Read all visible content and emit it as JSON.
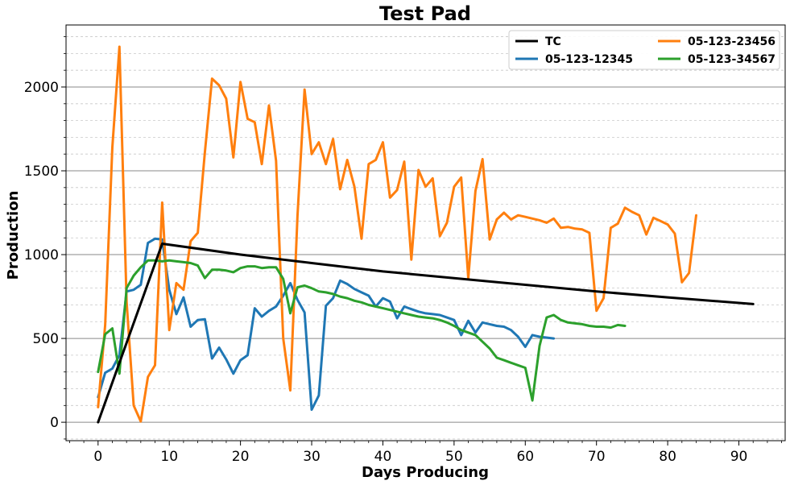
{
  "chart_data": {
    "type": "line",
    "title": "Test Pad",
    "xlabel": "Days Producing",
    "ylabel": "Production",
    "xlim": [
      -4.5,
      96.5
    ],
    "ylim": [
      -110,
      2370
    ],
    "x_ticks": [
      0,
      10,
      20,
      30,
      40,
      50,
      60,
      70,
      80,
      90
    ],
    "x_tick_labels": [
      "0",
      "10",
      "20",
      "30",
      "40",
      "50",
      "60",
      "70",
      "80",
      "90"
    ],
    "y_ticks": [
      0,
      500,
      1000,
      1500,
      2000
    ],
    "y_tick_labels": [
      "0",
      "500",
      "1000",
      "1500",
      "2000"
    ],
    "y_minor_step": 100,
    "grid": true,
    "legend_position": "top-right",
    "legend_columns": 2,
    "series": [
      {
        "name": "TC",
        "color": "#000000",
        "points": [
          [
            0,
            0
          ],
          [
            9,
            1065
          ],
          [
            20,
            1000
          ],
          [
            30,
            950
          ],
          [
            40,
            900
          ],
          [
            50,
            860
          ],
          [
            60,
            820
          ],
          [
            70,
            780
          ],
          [
            80,
            745
          ],
          [
            92,
            705
          ]
        ]
      },
      {
        "name": "05-123-12345",
        "color": "#1f77b4",
        "points": [
          [
            0,
            150
          ],
          [
            1,
            295
          ],
          [
            2,
            320
          ],
          [
            3,
            400
          ],
          [
            4,
            780
          ],
          [
            5,
            790
          ],
          [
            6,
            820
          ],
          [
            7,
            1070
          ],
          [
            8,
            1095
          ],
          [
            9,
            1090
          ],
          [
            10,
            790
          ],
          [
            11,
            645
          ],
          [
            12,
            745
          ],
          [
            13,
            570
          ],
          [
            14,
            610
          ],
          [
            15,
            615
          ],
          [
            16,
            380
          ],
          [
            17,
            445
          ],
          [
            18,
            375
          ],
          [
            19,
            290
          ],
          [
            20,
            370
          ],
          [
            21,
            400
          ],
          [
            22,
            680
          ],
          [
            23,
            630
          ],
          [
            24,
            665
          ],
          [
            25,
            690
          ],
          [
            26,
            755
          ],
          [
            27,
            830
          ],
          [
            28,
            730
          ],
          [
            29,
            655
          ],
          [
            30,
            75
          ],
          [
            31,
            160
          ],
          [
            32,
            695
          ],
          [
            33,
            740
          ],
          [
            34,
            845
          ],
          [
            35,
            825
          ],
          [
            36,
            795
          ],
          [
            37,
            775
          ],
          [
            38,
            755
          ],
          [
            39,
            690
          ],
          [
            40,
            740
          ],
          [
            41,
            720
          ],
          [
            42,
            620
          ],
          [
            43,
            690
          ],
          [
            44,
            675
          ],
          [
            45,
            660
          ],
          [
            46,
            650
          ],
          [
            47,
            645
          ],
          [
            48,
            640
          ],
          [
            49,
            625
          ],
          [
            50,
            610
          ],
          [
            51,
            520
          ],
          [
            52,
            605
          ],
          [
            53,
            535
          ],
          [
            54,
            595
          ],
          [
            55,
            585
          ],
          [
            56,
            575
          ],
          [
            57,
            570
          ],
          [
            58,
            550
          ],
          [
            59,
            510
          ],
          [
            60,
            450
          ],
          [
            61,
            520
          ],
          [
            62,
            510
          ],
          [
            64,
            500
          ]
        ]
      },
      {
        "name": "05-123-23456",
        "color": "#ff7f0e",
        "points": [
          [
            0,
            90
          ],
          [
            1,
            580
          ],
          [
            2,
            1640
          ],
          [
            3,
            2240
          ],
          [
            4,
            720
          ],
          [
            5,
            100
          ],
          [
            6,
            5
          ],
          [
            7,
            270
          ],
          [
            8,
            340
          ],
          [
            9,
            1310
          ],
          [
            10,
            550
          ],
          [
            11,
            830
          ],
          [
            12,
            790
          ],
          [
            13,
            1080
          ],
          [
            14,
            1130
          ],
          [
            15,
            1610
          ],
          [
            16,
            2050
          ],
          [
            17,
            2010
          ],
          [
            18,
            1930
          ],
          [
            19,
            1580
          ],
          [
            20,
            2030
          ],
          [
            21,
            1810
          ],
          [
            22,
            1790
          ],
          [
            23,
            1540
          ],
          [
            24,
            1890
          ],
          [
            25,
            1560
          ],
          [
            26,
            500
          ],
          [
            27,
            190
          ],
          [
            28,
            1230
          ],
          [
            29,
            1985
          ],
          [
            30,
            1600
          ],
          [
            31,
            1670
          ],
          [
            32,
            1540
          ],
          [
            33,
            1690
          ],
          [
            34,
            1390
          ],
          [
            35,
            1565
          ],
          [
            36,
            1405
          ],
          [
            37,
            1095
          ],
          [
            38,
            1540
          ],
          [
            39,
            1565
          ],
          [
            40,
            1670
          ],
          [
            41,
            1340
          ],
          [
            42,
            1385
          ],
          [
            43,
            1555
          ],
          [
            44,
            970
          ],
          [
            45,
            1505
          ],
          [
            46,
            1405
          ],
          [
            47,
            1455
          ],
          [
            48,
            1110
          ],
          [
            49,
            1190
          ],
          [
            50,
            1405
          ],
          [
            51,
            1460
          ],
          [
            52,
            860
          ],
          [
            53,
            1380
          ],
          [
            54,
            1570
          ],
          [
            55,
            1090
          ],
          [
            56,
            1210
          ],
          [
            57,
            1250
          ],
          [
            58,
            1210
          ],
          [
            59,
            1235
          ],
          [
            60,
            1225
          ],
          [
            61,
            1215
          ],
          [
            62,
            1205
          ],
          [
            63,
            1190
          ],
          [
            64,
            1215
          ],
          [
            65,
            1160
          ],
          [
            66,
            1165
          ],
          [
            67,
            1155
          ],
          [
            68,
            1150
          ],
          [
            69,
            1130
          ],
          [
            70,
            665
          ],
          [
            71,
            740
          ],
          [
            72,
            1160
          ],
          [
            73,
            1185
          ],
          [
            74,
            1280
          ],
          [
            75,
            1255
          ],
          [
            76,
            1235
          ],
          [
            77,
            1120
          ],
          [
            78,
            1220
          ],
          [
            79,
            1200
          ],
          [
            80,
            1180
          ],
          [
            81,
            1125
          ],
          [
            82,
            835
          ],
          [
            83,
            890
          ],
          [
            84,
            1235
          ]
        ]
      },
      {
        "name": "05-123-34567",
        "color": "#2ca02c",
        "points": [
          [
            0,
            300
          ],
          [
            1,
            525
          ],
          [
            2,
            560
          ],
          [
            3,
            290
          ],
          [
            4,
            800
          ],
          [
            5,
            875
          ],
          [
            6,
            925
          ],
          [
            7,
            965
          ],
          [
            8,
            965
          ],
          [
            9,
            960
          ],
          [
            10,
            965
          ],
          [
            11,
            960
          ],
          [
            12,
            955
          ],
          [
            13,
            950
          ],
          [
            14,
            935
          ],
          [
            15,
            860
          ],
          [
            16,
            910
          ],
          [
            17,
            910
          ],
          [
            18,
            905
          ],
          [
            19,
            895
          ],
          [
            20,
            920
          ],
          [
            21,
            930
          ],
          [
            22,
            930
          ],
          [
            23,
            920
          ],
          [
            24,
            925
          ],
          [
            25,
            925
          ],
          [
            26,
            855
          ],
          [
            27,
            650
          ],
          [
            28,
            805
          ],
          [
            29,
            815
          ],
          [
            30,
            800
          ],
          [
            31,
            780
          ],
          [
            32,
            775
          ],
          [
            33,
            765
          ],
          [
            34,
            750
          ],
          [
            35,
            740
          ],
          [
            36,
            725
          ],
          [
            37,
            715
          ],
          [
            38,
            700
          ],
          [
            39,
            690
          ],
          [
            40,
            680
          ],
          [
            41,
            670
          ],
          [
            42,
            660
          ],
          [
            43,
            650
          ],
          [
            44,
            640
          ],
          [
            45,
            630
          ],
          [
            46,
            625
          ],
          [
            47,
            620
          ],
          [
            48,
            610
          ],
          [
            49,
            595
          ],
          [
            50,
            575
          ],
          [
            51,
            550
          ],
          [
            52,
            535
          ],
          [
            53,
            520
          ],
          [
            54,
            480
          ],
          [
            55,
            440
          ],
          [
            56,
            385
          ],
          [
            57,
            370
          ],
          [
            58,
            355
          ],
          [
            59,
            340
          ],
          [
            60,
            325
          ],
          [
            61,
            130
          ],
          [
            62,
            455
          ],
          [
            63,
            625
          ],
          [
            64,
            640
          ],
          [
            65,
            610
          ],
          [
            66,
            595
          ],
          [
            67,
            590
          ],
          [
            68,
            585
          ],
          [
            69,
            575
          ],
          [
            70,
            570
          ],
          [
            71,
            570
          ],
          [
            72,
            565
          ],
          [
            73,
            580
          ],
          [
            74,
            575
          ]
        ]
      }
    ]
  }
}
